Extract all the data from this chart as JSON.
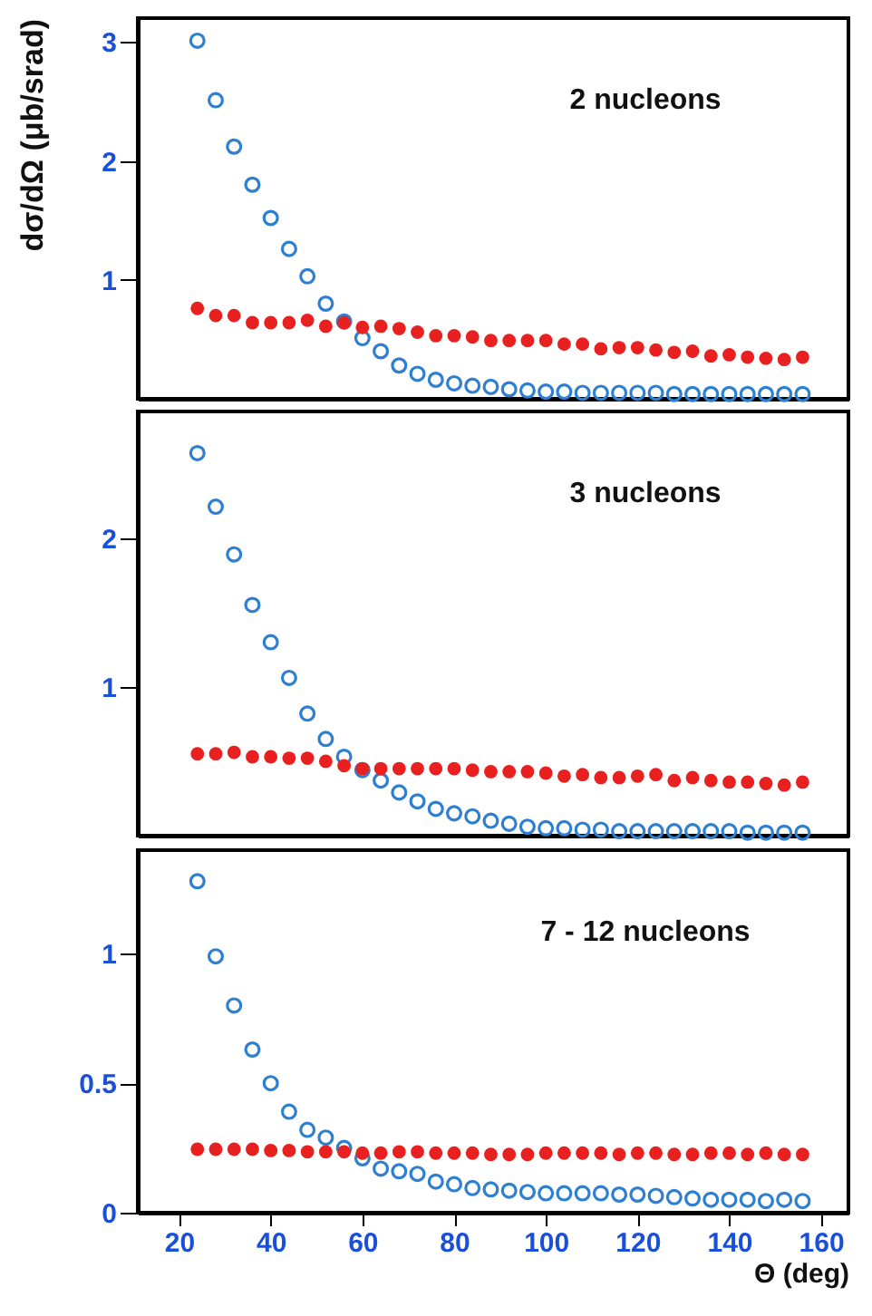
{
  "chart_data": [
    {
      "type": "scatter",
      "ylabel": "dσ/dΩ (μb/srad)",
      "annotations": [
        "2 nucleons"
      ],
      "x": [
        24,
        28,
        32,
        36,
        40,
        44,
        48,
        52,
        56,
        60,
        64,
        68,
        72,
        76,
        80,
        84,
        88,
        92,
        96,
        100,
        104,
        108,
        112,
        116,
        120,
        124,
        128,
        132,
        136,
        140,
        144,
        148,
        152,
        156
      ],
      "xlim": [
        11,
        166
      ],
      "ylim": [
        0,
        3.2
      ],
      "yticks": [
        1,
        2,
        3
      ],
      "tick_labels": "y",
      "marker": "circle",
      "grid": false,
      "series": [
        {
          "color": "#2f7fd0",
          "values": [
            3.01,
            2.51,
            2.12,
            1.8,
            1.52,
            1.26,
            1.03,
            0.8,
            0.65,
            0.51,
            0.4,
            0.28,
            0.21,
            0.16,
            0.13,
            0.11,
            0.1,
            0.08,
            0.07,
            0.06,
            0.06,
            0.05,
            0.05,
            0.05,
            0.05,
            0.05,
            0.04,
            0.04,
            0.04,
            0.04,
            0.04,
            0.04,
            0.04,
            0.04
          ]
        },
        {
          "color": "#e8201f",
          "values": [
            0.76,
            0.7,
            0.7,
            0.64,
            0.64,
            0.64,
            0.66,
            0.61,
            0.64,
            0.6,
            0.61,
            0.59,
            0.56,
            0.53,
            0.53,
            0.52,
            0.49,
            0.49,
            0.49,
            0.49,
            0.46,
            0.46,
            0.42,
            0.43,
            0.43,
            0.41,
            0.39,
            0.4,
            0.36,
            0.37,
            0.35,
            0.34,
            0.33,
            0.35
          ]
        }
      ]
    },
    {
      "type": "scatter",
      "annotations": [
        "3 nucleons"
      ],
      "x": [
        24,
        28,
        32,
        36,
        40,
        44,
        48,
        52,
        56,
        60,
        64,
        68,
        72,
        76,
        80,
        84,
        88,
        92,
        96,
        100,
        104,
        108,
        112,
        116,
        120,
        124,
        128,
        132,
        136,
        140,
        144,
        148,
        152,
        156
      ],
      "xlim": [
        11,
        166
      ],
      "ylim": [
        0,
        2.85
      ],
      "yticks": [
        1,
        2
      ],
      "tick_labels": "y",
      "marker": "circle",
      "grid": false,
      "series": [
        {
          "color": "#2f7fd0",
          "values": [
            2.57,
            2.21,
            1.89,
            1.55,
            1.3,
            1.06,
            0.82,
            0.65,
            0.53,
            0.44,
            0.37,
            0.29,
            0.23,
            0.18,
            0.15,
            0.13,
            0.1,
            0.08,
            0.06,
            0.05,
            0.05,
            0.04,
            0.04,
            0.03,
            0.03,
            0.03,
            0.03,
            0.03,
            0.03,
            0.03,
            0.02,
            0.02,
            0.02,
            0.02
          ]
        },
        {
          "color": "#e8201f",
          "values": [
            0.55,
            0.55,
            0.56,
            0.53,
            0.53,
            0.52,
            0.52,
            0.5,
            0.47,
            0.45,
            0.45,
            0.45,
            0.45,
            0.45,
            0.45,
            0.44,
            0.43,
            0.43,
            0.43,
            0.42,
            0.4,
            0.41,
            0.39,
            0.39,
            0.4,
            0.41,
            0.37,
            0.39,
            0.37,
            0.36,
            0.36,
            0.35,
            0.34,
            0.36
          ]
        }
      ]
    },
    {
      "type": "scatter",
      "annotations": [
        "7 - 12 nucleons"
      ],
      "xlabel": "Θ (deg)",
      "x": [
        24,
        28,
        32,
        36,
        40,
        44,
        48,
        52,
        56,
        60,
        64,
        68,
        72,
        76,
        80,
        84,
        88,
        92,
        96,
        100,
        104,
        108,
        112,
        116,
        120,
        124,
        128,
        132,
        136,
        140,
        144,
        148,
        152,
        156
      ],
      "xlim": [
        11,
        166
      ],
      "xticks": [
        20,
        40,
        60,
        80,
        100,
        120,
        140,
        160
      ],
      "ylim": [
        0,
        1.4
      ],
      "yticks": [
        0,
        0.5,
        1
      ],
      "marker": "circle",
      "grid": false,
      "series": [
        {
          "color": "#2f7fd0",
          "values": [
            1.28,
            0.99,
            0.8,
            0.63,
            0.5,
            0.39,
            0.32,
            0.29,
            0.25,
            0.21,
            0.17,
            0.16,
            0.15,
            0.12,
            0.11,
            0.095,
            0.09,
            0.085,
            0.08,
            0.075,
            0.075,
            0.075,
            0.075,
            0.07,
            0.07,
            0.065,
            0.06,
            0.055,
            0.05,
            0.05,
            0.05,
            0.045,
            0.05,
            0.045
          ]
        },
        {
          "color": "#e8201f",
          "values": [
            0.245,
            0.245,
            0.245,
            0.245,
            0.24,
            0.24,
            0.235,
            0.235,
            0.235,
            0.23,
            0.23,
            0.235,
            0.235,
            0.23,
            0.23,
            0.23,
            0.225,
            0.225,
            0.225,
            0.23,
            0.23,
            0.23,
            0.23,
            0.225,
            0.23,
            0.23,
            0.225,
            0.225,
            0.23,
            0.23,
            0.225,
            0.23,
            0.225,
            0.225
          ]
        }
      ]
    }
  ]
}
